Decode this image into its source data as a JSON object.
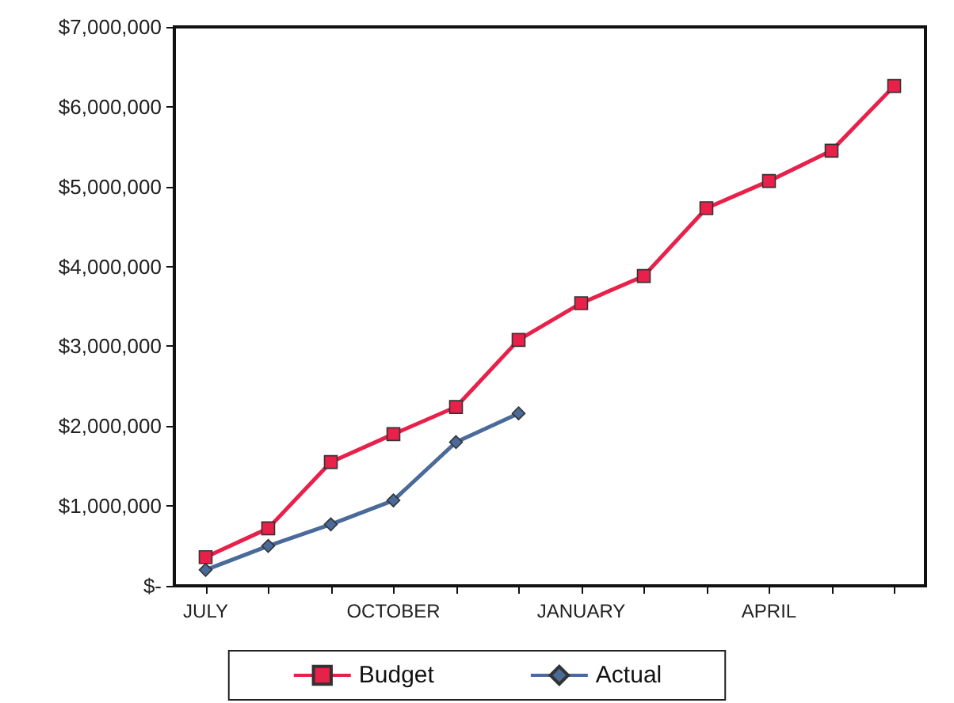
{
  "chart_data": {
    "type": "line",
    "categories": [
      "JULY",
      null,
      null,
      "OCTOBER",
      null,
      null,
      "JANUARY",
      null,
      null,
      "APRIL",
      null,
      null
    ],
    "series": [
      {
        "name": "Budget",
        "color": "#e8204a",
        "marker": "square",
        "values": [
          360000,
          720000,
          1550000,
          1900000,
          2240000,
          3080000,
          3540000,
          3880000,
          4730000,
          5070000,
          5450000,
          6260000
        ]
      },
      {
        "name": "Actual",
        "color": "#4a6a9a",
        "marker": "diamond",
        "values": [
          200000,
          500000,
          770000,
          1070000,
          1800000,
          2160000,
          null,
          null,
          null,
          null,
          null,
          null
        ]
      }
    ],
    "ylim": [
      0,
      7000000
    ],
    "yticks": [
      {
        "value": 0,
        "label": "$-"
      },
      {
        "value": 1000000,
        "label": "$1,000,000"
      },
      {
        "value": 2000000,
        "label": "$2,000,000"
      },
      {
        "value": 3000000,
        "label": "$3,000,000"
      },
      {
        "value": 4000000,
        "label": "$4,000,000"
      },
      {
        "value": 5000000,
        "label": "$5,000,000"
      },
      {
        "value": 6000000,
        "label": "$6,000,000"
      },
      {
        "value": 7000000,
        "label": "$7,000,000"
      }
    ],
    "grid": false,
    "legend": "bottom"
  }
}
